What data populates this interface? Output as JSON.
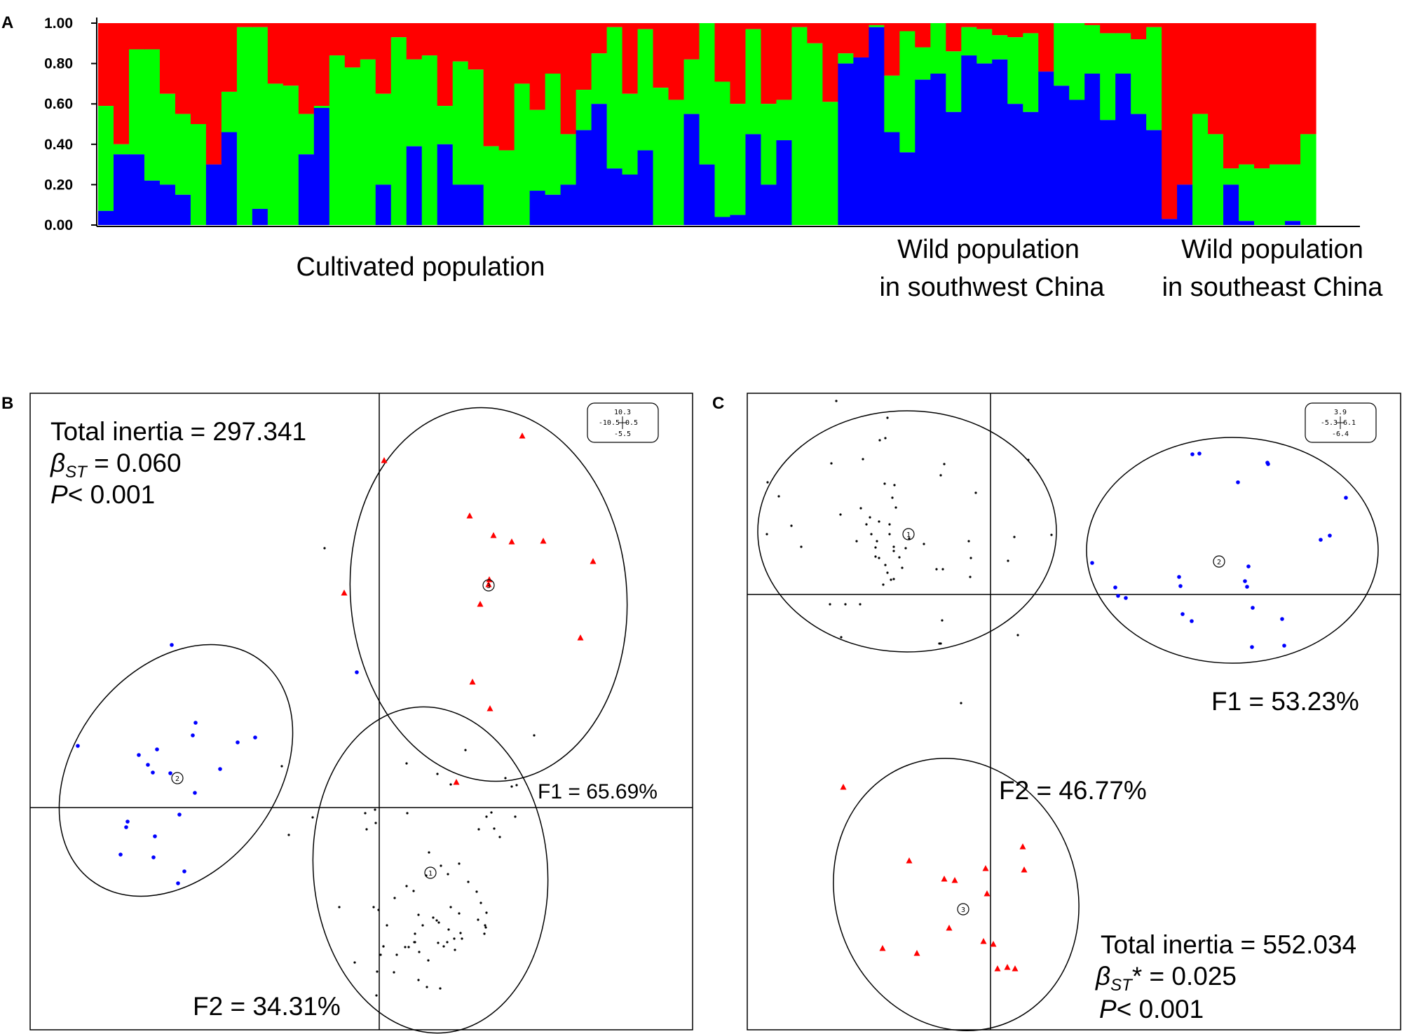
{
  "chart_data": [
    {
      "panel_label": "A",
      "type": "bar",
      "stacked": true,
      "ylim": [
        0,
        1
      ],
      "yticks": [
        "0.00",
        "0.20",
        "0.40",
        "0.60",
        "0.80",
        "1.00"
      ],
      "colors": {
        "blue": "#0000ff",
        "green": "#00ff00",
        "red": "#ff0000"
      },
      "groups": [
        {
          "label_lines": [
            "Cultivated population"
          ]
        },
        {
          "label_lines": [
            "Wild population",
            "in southwest China"
          ]
        },
        {
          "label_lines": [
            "Wild population",
            "in southeast China"
          ]
        }
      ],
      "group_sizes": [
        48,
        19,
        12
      ],
      "blue": [
        0.07,
        0.35,
        0.35,
        0.22,
        0.2,
        0.15,
        0.0,
        0.3,
        0.46,
        0.0,
        0.08,
        0.0,
        0.0,
        0.35,
        0.58,
        0.0,
        0.0,
        0.0,
        0.2,
        0.0,
        0.39,
        0.0,
        0.4,
        0.2,
        0.2,
        0.0,
        0.0,
        0.0,
        0.17,
        0.15,
        0.2,
        0.47,
        0.6,
        0.28,
        0.25,
        0.37,
        0.0,
        0.0,
        0.55,
        0.3,
        0.04,
        0.05,
        0.45,
        0.2,
        0.42,
        0.0,
        0.0,
        0.0,
        0.8,
        0.83,
        0.98,
        0.46,
        0.36,
        0.72,
        0.75,
        0.56,
        0.84,
        0.8,
        0.82,
        0.6,
        0.56,
        0.76,
        0.69,
        0.62,
        0.75,
        0.52,
        0.75,
        0.55,
        0.47,
        0.03,
        0.2,
        0.0,
        0.0,
        0.2,
        0.02,
        0.0,
        0.0,
        0.02,
        0.0
      ],
      "green": [
        0.52,
        0.05,
        0.52,
        0.65,
        0.45,
        0.4,
        0.5,
        0.0,
        0.2,
        0.98,
        0.9,
        0.7,
        0.69,
        0.2,
        0.01,
        0.84,
        0.78,
        0.82,
        0.45,
        0.93,
        0.43,
        0.84,
        0.19,
        0.61,
        0.57,
        0.39,
        0.37,
        0.7,
        0.4,
        0.6,
        0.25,
        0.2,
        0.25,
        0.7,
        0.4,
        0.6,
        0.68,
        0.62,
        0.27,
        0.7,
        0.67,
        0.55,
        0.52,
        0.4,
        0.2,
        0.98,
        0.9,
        0.61,
        0.05,
        0.0,
        0.01,
        0.28,
        0.6,
        0.16,
        0.25,
        0.3,
        0.14,
        0.17,
        0.12,
        0.33,
        0.39,
        0.0,
        0.31,
        0.38,
        0.24,
        0.43,
        0.2,
        0.37,
        0.51,
        0.0,
        0.0,
        0.55,
        0.45,
        0.08,
        0.28,
        0.28,
        0.3,
        0.28,
        0.45
      ],
      "note": "red = 1 - blue - green"
    },
    {
      "panel_label": "B",
      "type": "scatter",
      "annotations": {
        "f1": "F1 = 65.69%",
        "f2": "F2 = 34.31%",
        "inertia": "Total inertia = 297.341",
        "beta_sym": "β",
        "beta_sub": "ST",
        "beta_rest": " = 0.060",
        "p_sym": "P",
        "p_rest": "< 0.001"
      },
      "scale_box": {
        "top": "10.3",
        "mid": "-10.5",
        "mid_right": "0.5",
        "bottom": "-5.5"
      },
      "series": [
        {
          "color": "#ff0000",
          "marker": "triangle",
          "centroid": [
            0.55,
            0.33
          ],
          "points": [
            [
              0.0,
              -1.0
            ],
            [
              0.8,
              -0.85
            ],
            [
              0.5,
              -0.5
            ],
            [
              0.9,
              -0.1
            ],
            [
              0.85,
              -0.45
            ],
            [
              -0.05,
              0.66
            ],
            [
              0.45,
              0.86
            ],
            [
              -0.25,
              -0.15
            ]
          ]
        },
        {
          "color": "#0000ff",
          "marker": "dot",
          "centroid": [
            -0.45,
            0.35
          ],
          "points": [
            [
              -0.02,
              -0.7
            ],
            [
              0.4,
              -0.55
            ],
            [
              0.55,
              -0.25
            ],
            [
              0.25,
              0.15
            ],
            [
              -0.65,
              -0.05
            ],
            [
              -0.2,
              0.1
            ],
            [
              0.1,
              0.2
            ],
            [
              0.35,
              0.15
            ]
          ]
        },
        {
          "color": "#000000",
          "marker": "dot",
          "centroid": [
            0.55,
            0.15
          ],
          "points": [
            [
              -0.5,
              -0.15
            ],
            [
              0.3,
              -0.8
            ],
            [
              -0.3,
              0.7
            ],
            [
              0.6,
              0.3
            ],
            [
              0.2,
              0.2
            ],
            [
              -0.2,
              -0.2
            ],
            [
              0.4,
              -0.35
            ],
            [
              -0.7,
              0.2
            ]
          ]
        }
      ],
      "labels": [
        "1",
        "2",
        "3"
      ]
    },
    {
      "panel_label": "C",
      "type": "scatter",
      "annotations": {
        "f1": "F1 = 53.23%",
        "f2": "F2 = 46.77%",
        "inertia": "Total inertia = 552.034",
        "beta_sym": "β",
        "beta_sub": "ST",
        "beta_rest": "* = 0.025",
        "p_sym": "P",
        "p_rest": "< 0.001"
      },
      "scale_box": {
        "top": "3.9",
        "mid": "-5.3",
        "mid_right": "6.1",
        "bottom": "-6.4"
      },
      "series": [
        {
          "color": "#000000",
          "marker": "dot",
          "centroid": [
            -0.65,
            0.35
          ]
        },
        {
          "color": "#0000ff",
          "marker": "dot",
          "centroid": [
            0.85,
            0.3
          ]
        },
        {
          "color": "#ff0000",
          "marker": "triangle",
          "centroid": [
            -0.25,
            -1.0
          ]
        }
      ],
      "labels": [
        "1",
        "2",
        "3"
      ]
    }
  ]
}
